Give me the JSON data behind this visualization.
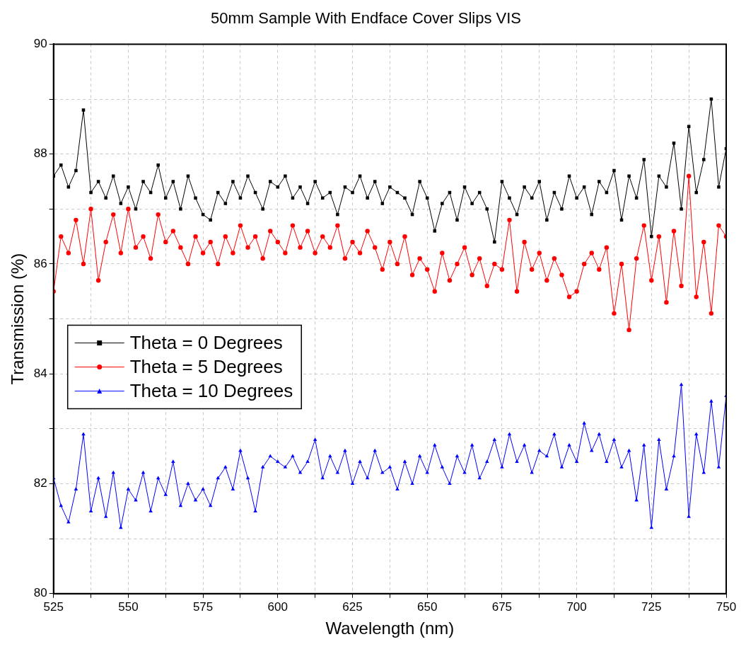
{
  "chart_data": {
    "type": "line",
    "title": "50mm Sample With Endface Cover Slips VIS",
    "xlabel": "Wavelength (nm)",
    "ylabel": "Transmission (%)",
    "x": [
      525,
      527.5,
      530,
      532.5,
      535,
      537.5,
      540,
      542.5,
      545,
      547.5,
      550,
      552.5,
      555,
      557.5,
      560,
      562.5,
      565,
      567.5,
      570,
      572.5,
      575,
      577.5,
      580,
      582.5,
      585,
      587.5,
      590,
      592.5,
      595,
      597.5,
      600,
      602.5,
      605,
      607.5,
      610,
      612.5,
      615,
      617.5,
      620,
      622.5,
      625,
      627.5,
      630,
      632.5,
      635,
      637.5,
      640,
      642.5,
      645,
      647.5,
      650,
      652.5,
      655,
      657.5,
      660,
      662.5,
      665,
      667.5,
      670,
      672.5,
      675,
      677.5,
      680,
      682.5,
      685,
      687.5,
      690,
      692.5,
      695,
      697.5,
      700,
      702.5,
      705,
      707.5,
      710,
      712.5,
      715,
      717.5,
      720,
      722.5,
      725,
      727.5,
      730,
      732.5,
      735,
      737.5,
      740,
      742.5,
      745,
      747.5,
      750
    ],
    "series": [
      {
        "name": "Theta = 0 Degrees",
        "color": "#000000",
        "marker": "square",
        "values": [
          87.6,
          87.8,
          87.4,
          87.7,
          88.8,
          87.3,
          87.5,
          87.2,
          87.6,
          87.1,
          87.4,
          87.0,
          87.5,
          87.3,
          87.8,
          87.2,
          87.5,
          87.0,
          87.6,
          87.2,
          86.9,
          86.8,
          87.3,
          87.1,
          87.5,
          87.2,
          87.6,
          87.3,
          87.0,
          87.5,
          87.4,
          87.6,
          87.2,
          87.4,
          87.1,
          87.5,
          87.2,
          87.3,
          86.9,
          87.4,
          87.3,
          87.6,
          87.2,
          87.5,
          87.1,
          87.4,
          87.3,
          87.2,
          86.9,
          87.5,
          87.2,
          86.6,
          87.1,
          87.3,
          86.8,
          87.4,
          87.1,
          87.3,
          87.0,
          86.4,
          87.5,
          87.2,
          86.9,
          87.4,
          87.2,
          87.5,
          86.8,
          87.3,
          87.0,
          87.6,
          87.2,
          87.4,
          86.9,
          87.5,
          87.3,
          87.7,
          86.8,
          87.6,
          87.2,
          87.9,
          86.5,
          87.6,
          87.4,
          88.2,
          87.0,
          88.5,
          87.3,
          87.9,
          89.0,
          87.4,
          88.1
        ]
      },
      {
        "name": "Theta = 5 Degrees",
        "color": "#ff0000",
        "marker": "circle",
        "values": [
          85.5,
          86.5,
          86.2,
          86.8,
          86.0,
          87.0,
          85.7,
          86.4,
          86.9,
          86.2,
          87.0,
          86.3,
          86.5,
          86.1,
          86.9,
          86.4,
          86.6,
          86.3,
          86.0,
          86.5,
          86.2,
          86.4,
          86.0,
          86.5,
          86.2,
          86.7,
          86.3,
          86.5,
          86.1,
          86.6,
          86.4,
          86.2,
          86.7,
          86.3,
          86.6,
          86.2,
          86.5,
          86.3,
          86.7,
          86.1,
          86.4,
          86.2,
          86.6,
          86.3,
          85.9,
          86.4,
          86.0,
          86.5,
          85.8,
          86.1,
          85.9,
          85.5,
          86.2,
          85.7,
          86.0,
          86.3,
          85.8,
          86.1,
          85.6,
          86.0,
          85.9,
          86.8,
          85.5,
          86.4,
          85.9,
          86.2,
          85.7,
          86.1,
          85.8,
          85.4,
          85.5,
          86.0,
          86.2,
          85.9,
          86.3,
          85.1,
          86.0,
          84.8,
          86.1,
          86.7,
          85.7,
          86.5,
          85.3,
          86.6,
          85.6,
          87.6,
          85.4,
          86.4,
          85.1,
          86.7,
          86.5
        ]
      },
      {
        "name": "Theta = 10 Degrees",
        "color": "#0000ff",
        "marker": "triangle",
        "values": [
          82.1,
          81.6,
          81.3,
          81.9,
          82.9,
          81.5,
          82.1,
          81.4,
          82.2,
          81.2,
          81.9,
          81.7,
          82.2,
          81.5,
          82.1,
          81.8,
          82.4,
          81.6,
          82.0,
          81.7,
          81.9,
          81.6,
          82.1,
          82.3,
          81.9,
          82.6,
          82.1,
          81.5,
          82.3,
          82.5,
          82.4,
          82.3,
          82.5,
          82.2,
          82.4,
          82.8,
          82.1,
          82.5,
          82.2,
          82.6,
          82.0,
          82.4,
          82.1,
          82.6,
          82.2,
          82.3,
          81.9,
          82.4,
          82.0,
          82.5,
          82.2,
          82.7,
          82.3,
          82.0,
          82.5,
          82.2,
          82.7,
          82.1,
          82.4,
          82.8,
          82.3,
          82.9,
          82.4,
          82.7,
          82.2,
          82.6,
          82.5,
          82.9,
          82.3,
          82.7,
          82.4,
          83.1,
          82.6,
          82.9,
          82.4,
          82.8,
          82.3,
          82.6,
          81.7,
          82.7,
          81.2,
          82.8,
          81.9,
          82.5,
          83.8,
          81.4,
          82.9,
          82.2,
          83.5,
          82.3,
          83.6
        ]
      }
    ],
    "xlim": [
      525,
      750
    ],
    "xticks": [
      525,
      {
        "value": 537.5,
        "label": null
      },
      550,
      {
        "value": 562.5,
        "label": null
      },
      575,
      {
        "value": 587.5,
        "label": null
      },
      600,
      {
        "value": 612.5,
        "label": null
      },
      625,
      {
        "value": 637.5,
        "label": null
      },
      650,
      {
        "value": 662.5,
        "label": null
      },
      675,
      {
        "value": 687.5,
        "label": null
      },
      700,
      {
        "value": 712.5,
        "label": null
      },
      725,
      {
        "value": 737.5,
        "label": null
      },
      750
    ],
    "ylim": [
      80,
      90
    ],
    "yticks": [
      80,
      {
        "value": 81,
        "label": null
      },
      82,
      {
        "value": 83,
        "label": null
      },
      84,
      {
        "value": 85,
        "label": null
      },
      86,
      {
        "value": 87,
        "label": null
      },
      88,
      {
        "value": 89,
        "label": null
      },
      90
    ],
    "grid": true,
    "legend": "left",
    "line_style": "solid"
  }
}
